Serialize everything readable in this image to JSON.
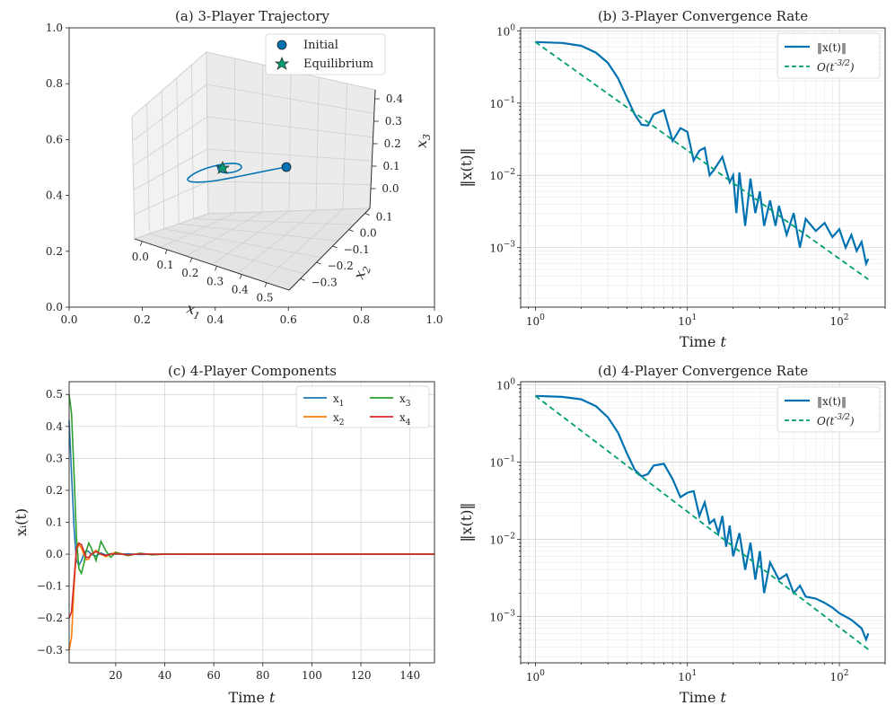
{
  "chart_data": [
    {
      "panel": "a",
      "type": "line3d",
      "title": "(a) 3-Player Trajectory",
      "outer_axes": {
        "xlim": [
          0.0,
          1.0
        ],
        "ylim": [
          0.0,
          1.0
        ],
        "xticks": [
          "0.0",
          "0.2",
          "0.4",
          "0.6",
          "0.8",
          "1.0"
        ],
        "yticks": [
          "0.0",
          "0.2",
          "0.4",
          "0.6",
          "0.8",
          "1.0"
        ]
      },
      "x1_label": "x_1",
      "x2_label": "x_2",
      "x3_label": "x_3",
      "x1_ticks": [
        "0.0",
        "0.1",
        "0.2",
        "0.3",
        "0.4",
        "0.5"
      ],
      "x2_ticks": [
        "0.1",
        "0.0",
        "−0.1",
        "−0.2",
        "−0.3"
      ],
      "x3_ticks": [
        "0.4",
        "0.3",
        "0.2",
        "0.1",
        "0.0"
      ],
      "legend": [
        {
          "label": "Initial",
          "marker": "circle",
          "color": "#0072B2"
        },
        {
          "label": "Equilibrium",
          "marker": "star",
          "color": "#009E73"
        }
      ],
      "initial_point": [
        0.5,
        -0.3,
        0.4
      ],
      "equilibrium_point": [
        0.0,
        0.0,
        0.0
      ],
      "line_color": "#0072B2"
    },
    {
      "panel": "b",
      "type": "line",
      "title": "(b) 3-Player Convergence Rate",
      "xlabel_main": "Time ",
      "xlabel_var": "t",
      "ylabel": "‖x(t)‖",
      "xscale": "log",
      "yscale": "log",
      "xlim": [
        0.8,
        200
      ],
      "ylim": [
        0.00015,
        1.1
      ],
      "xticks": [
        {
          "v": 1,
          "base": "10",
          "exp": "0"
        },
        {
          "v": 10,
          "base": "10",
          "exp": "1"
        },
        {
          "v": 100,
          "base": "10",
          "exp": "2"
        }
      ],
      "yticks": [
        {
          "v": 0.001,
          "base": "10",
          "exp": "−3"
        },
        {
          "v": 0.01,
          "base": "10",
          "exp": "−2"
        },
        {
          "v": 0.1,
          "base": "10",
          "exp": "−1"
        },
        {
          "v": 1,
          "base": "10",
          "exp": "0"
        }
      ],
      "series": [
        {
          "name": "‖x(t)‖",
          "color": "#0072B2",
          "style": "solid",
          "x": [
            1,
            1.5,
            2,
            2.5,
            3,
            3.5,
            4,
            4.5,
            5,
            5.5,
            6,
            7,
            8,
            9,
            10,
            11,
            12,
            13,
            14,
            15,
            17,
            19,
            20,
            21,
            22,
            24,
            26,
            28,
            30,
            32,
            35,
            38,
            40,
            45,
            50,
            55,
            60,
            70,
            80,
            90,
            100,
            110,
            120,
            130,
            140,
            150,
            155
          ],
          "y": [
            0.7,
            0.68,
            0.62,
            0.5,
            0.36,
            0.22,
            0.12,
            0.07,
            0.05,
            0.049,
            0.07,
            0.08,
            0.03,
            0.045,
            0.04,
            0.016,
            0.022,
            0.024,
            0.01,
            0.012,
            0.018,
            0.008,
            0.01,
            0.003,
            0.011,
            0.002,
            0.009,
            0.003,
            0.006,
            0.002,
            0.0045,
            0.002,
            0.0038,
            0.0015,
            0.003,
            0.001,
            0.0025,
            0.0017,
            0.0022,
            0.0014,
            0.0018,
            0.001,
            0.0015,
            0.0009,
            0.0012,
            0.0006,
            0.0007
          ]
        },
        {
          "name": "O(t^{-3/2})",
          "color": "#009E73",
          "style": "dashed",
          "x": [
            1,
            155
          ],
          "y": [
            0.7,
            0.000363
          ]
        }
      ],
      "legend_location": "upper right"
    },
    {
      "panel": "c",
      "type": "line",
      "title": "(c) 4-Player Components",
      "xlabel_main": "Time ",
      "xlabel_var": "t",
      "ylabel": "x_i(t)",
      "xlim": [
        1,
        150
      ],
      "ylim": [
        -0.34,
        0.54
      ],
      "xticks": [
        20,
        40,
        60,
        80,
        100,
        120,
        140
      ],
      "yticks": [
        -0.3,
        -0.2,
        -0.1,
        0.0,
        0.1,
        0.2,
        0.3,
        0.4,
        0.5
      ],
      "series": [
        {
          "name": "x_1",
          "color": "#1f77b4",
          "x": [
            1,
            2,
            3,
            4,
            5,
            6,
            7,
            8,
            9,
            10,
            12,
            14,
            16,
            18,
            20,
            25,
            30,
            35,
            40,
            50,
            60,
            80,
            100,
            120,
            150
          ],
          "y": [
            0.42,
            0.25,
            0.08,
            -0.02,
            -0.035,
            -0.02,
            0.0,
            0.012,
            0.008,
            0.0,
            -0.006,
            0.004,
            -0.003,
            0.002,
            0.0,
            0.001,
            -0.001,
            0.0,
            0.0,
            0.0,
            0.0,
            0.0,
            0.0,
            0.0,
            0.0
          ]
        },
        {
          "name": "x_2",
          "color": "#ff7f0e",
          "x": [
            1,
            2,
            3,
            4,
            5,
            6,
            7,
            8,
            9,
            10,
            12,
            14,
            16,
            18,
            20,
            25,
            30,
            35,
            40,
            50,
            60,
            80,
            100,
            120,
            150
          ],
          "y": [
            -0.3,
            -0.26,
            -0.1,
            0.01,
            0.03,
            0.02,
            0.0,
            -0.018,
            -0.015,
            0.0,
            0.012,
            0.0,
            -0.008,
            0.0,
            0.006,
            -0.004,
            0.003,
            -0.002,
            0.0,
            0.0,
            0.0,
            0.0,
            0.0,
            0.0,
            0.0
          ]
        },
        {
          "name": "x_3",
          "color": "#2ca02c",
          "x": [
            1,
            2,
            3,
            4,
            5,
            6,
            7,
            8,
            9,
            10,
            12,
            14,
            16,
            18,
            20,
            25,
            30,
            35,
            40,
            50,
            60,
            80,
            100,
            120,
            150
          ],
          "y": [
            0.5,
            0.44,
            0.25,
            0.05,
            -0.045,
            -0.06,
            -0.03,
            0.01,
            0.035,
            0.02,
            -0.02,
            0.04,
            0.01,
            -0.01,
            0.005,
            -0.004,
            0.003,
            -0.002,
            0.001,
            0.0,
            0.0,
            0.0,
            0.0,
            0.0,
            0.0
          ]
        },
        {
          "name": "x_4",
          "color": "#d62728",
          "x": [
            1,
            2,
            3,
            4,
            5,
            6,
            7,
            8,
            9,
            10,
            12,
            14,
            16,
            18,
            20,
            25,
            30,
            35,
            40,
            50,
            60,
            80,
            100,
            120,
            150
          ],
          "y": [
            -0.2,
            -0.18,
            -0.08,
            0.02,
            0.035,
            0.03,
            0.01,
            -0.01,
            -0.01,
            0.0,
            0.008,
            0.0,
            -0.004,
            0.0,
            0.002,
            -0.002,
            0.001,
            0.0,
            0.0,
            0.0,
            0.0,
            0.0,
            0.0,
            0.0,
            0.0
          ]
        }
      ],
      "legend_location": "upper right",
      "legend_columns": 2
    },
    {
      "panel": "d",
      "type": "line",
      "title": "(d) 4-Player Convergence Rate",
      "xlabel_main": "Time ",
      "xlabel_var": "t",
      "ylabel": "‖x(t)‖",
      "xscale": "log",
      "yscale": "log",
      "xlim": [
        0.8,
        200
      ],
      "ylim": [
        0.00025,
        1.1
      ],
      "xticks": [
        {
          "v": 1,
          "base": "10",
          "exp": "0"
        },
        {
          "v": 10,
          "base": "10",
          "exp": "1"
        },
        {
          "v": 100,
          "base": "10",
          "exp": "2"
        }
      ],
      "yticks": [
        {
          "v": 0.001,
          "base": "10",
          "exp": "−3"
        },
        {
          "v": 0.01,
          "base": "10",
          "exp": "−2"
        },
        {
          "v": 0.1,
          "base": "10",
          "exp": "−1"
        },
        {
          "v": 1,
          "base": "10",
          "exp": "0"
        }
      ],
      "series": [
        {
          "name": "‖x(t)‖",
          "color": "#0072B2",
          "style": "solid",
          "x": [
            1,
            1.5,
            2,
            2.5,
            3,
            3.5,
            4,
            4.5,
            5,
            5.5,
            6,
            7,
            8,
            9,
            10,
            11,
            12,
            13,
            14,
            15,
            16,
            17,
            18,
            19,
            20,
            22,
            24,
            26,
            28,
            30,
            32,
            35,
            40,
            45,
            50,
            55,
            60,
            70,
            80,
            90,
            100,
            120,
            140,
            150,
            155
          ],
          "y": [
            0.72,
            0.7,
            0.65,
            0.53,
            0.38,
            0.24,
            0.13,
            0.08,
            0.065,
            0.07,
            0.09,
            0.095,
            0.06,
            0.035,
            0.04,
            0.042,
            0.02,
            0.03,
            0.016,
            0.018,
            0.012,
            0.02,
            0.008,
            0.015,
            0.006,
            0.012,
            0.004,
            0.009,
            0.003,
            0.007,
            0.002,
            0.005,
            0.003,
            0.0035,
            0.002,
            0.0025,
            0.0018,
            0.0017,
            0.0015,
            0.0013,
            0.0011,
            0.0009,
            0.0007,
            0.0005,
            0.0006
          ]
        },
        {
          "name": "O(t^{-3/2})",
          "color": "#009E73",
          "style": "dashed",
          "x": [
            1,
            155
          ],
          "y": [
            0.72,
            0.000373
          ]
        }
      ],
      "legend_location": "upper right"
    }
  ]
}
